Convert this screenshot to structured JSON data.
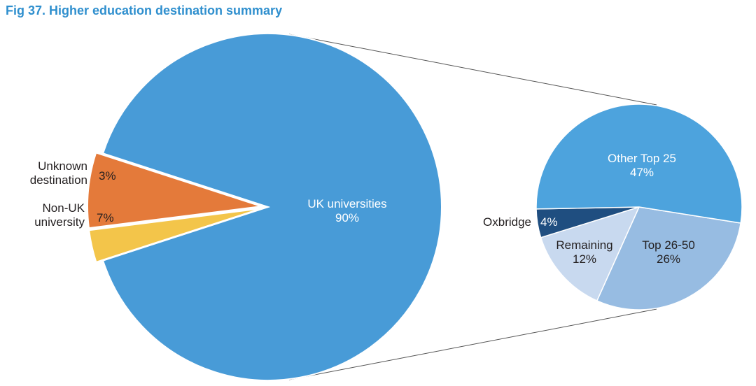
{
  "title": "Fig 37. Higher education destination summary",
  "chart_data": [
    {
      "type": "pie",
      "name": "main",
      "slices": [
        {
          "label": "UK universities",
          "value": 90,
          "value_label": "90%",
          "color": "#489bd7",
          "label_position": "inside"
        },
        {
          "label": "Non-UK university",
          "label_lines": [
            "Non-UK",
            "university"
          ],
          "value": 7,
          "value_label": "7%",
          "color": "#e47a3a",
          "exploded": true,
          "label_position": "outside-left"
        },
        {
          "label": "Unknown destination",
          "label_lines": [
            "Unknown",
            "destination"
          ],
          "value": 3,
          "value_label": "3%",
          "color": "#f3c54a",
          "exploded": true,
          "label_position": "outside-left"
        }
      ]
    },
    {
      "type": "pie",
      "name": "breakdown of UK universities",
      "slices": [
        {
          "label": "Other Top 25",
          "value": 47,
          "value_label": "47%",
          "color": "#4da3dd",
          "label_position": "inside"
        },
        {
          "label": "Top 26-50",
          "value": 26,
          "value_label": "26%",
          "color": "#97bce2",
          "label_position": "inside"
        },
        {
          "label": "Remaining",
          "value": 12,
          "value_label": "12%",
          "color": "#c8d9ef",
          "label_position": "inside"
        },
        {
          "label": "Oxbridge",
          "value": 4,
          "value_label": "4%",
          "color": "#1f4e80",
          "label_position": "outside-left"
        }
      ]
    }
  ]
}
